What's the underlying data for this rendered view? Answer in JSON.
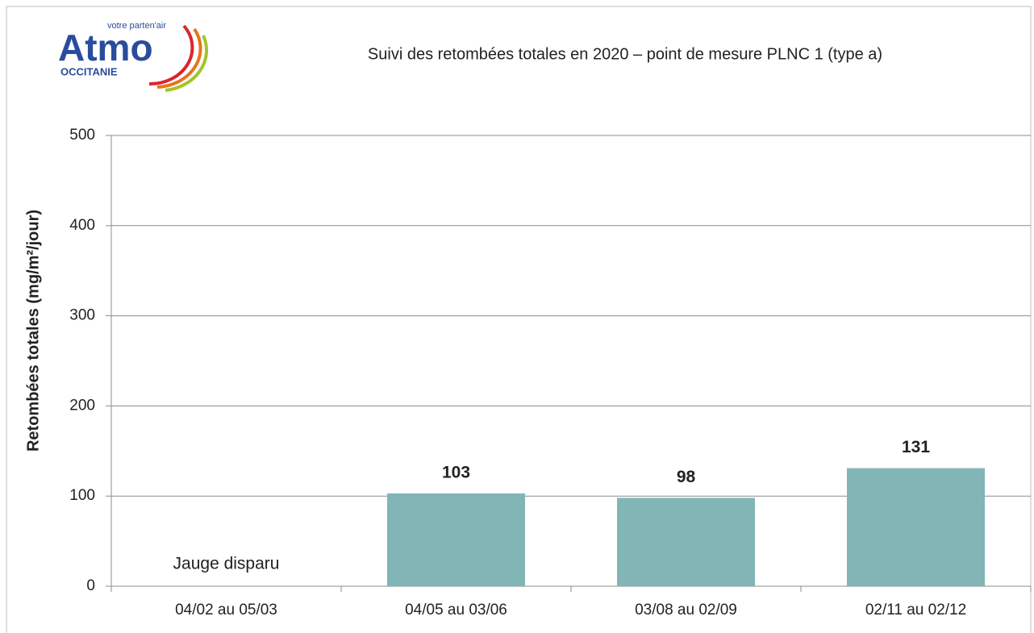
{
  "logo": {
    "tagline": "votre parten'air",
    "name": "Atmo",
    "region": "OCCITANIE"
  },
  "chart_data": {
    "type": "bar",
    "title": "Suivi des retombées totales en 2020 – point de mesure PLNC 1 (type a)",
    "y_label": "Retombées totales (mg/m²/jour)",
    "categories": [
      "04/02 au 05/03",
      "04/05 au 03/06",
      "03/08 au 02/09",
      "02/11 au 02/12"
    ],
    "values": [
      null,
      103,
      98,
      131
    ],
    "annotation": "Jauge disparu",
    "color": "#82b5b5",
    "ylim": [
      0,
      500
    ],
    "yticks": [
      0,
      100,
      200,
      300,
      400,
      500
    ],
    "grid": true
  }
}
